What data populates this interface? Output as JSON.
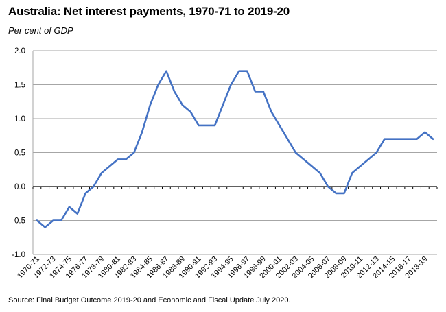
{
  "title": "Australia: Net interest payments, 1970-71 to 2019-20",
  "subtitle": "Per cent of GDP",
  "source": "Source: Final Budget Outcome 2019-20 and Economic and Fiscal Update July 2020.",
  "chart_data": {
    "type": "line",
    "title": "Australia: Net interest payments, 1970-71 to 2019-20",
    "ylabel": "Per cent of GDP",
    "ylim": [
      -1.0,
      2.0
    ],
    "yticks": [
      "2.0",
      "1.5",
      "1.0",
      "0.5",
      "0.0",
      "-0.5",
      "-1.0"
    ],
    "grid": true,
    "legend": "none",
    "line_color": "#4472C4",
    "x": [
      "1970-71",
      "1971-72",
      "1972-73",
      "1973-74",
      "1974-75",
      "1975-76",
      "1976-77",
      "1977-78",
      "1978-79",
      "1979-80",
      "1980-81",
      "1981-82",
      "1982-83",
      "1983-84",
      "1984-85",
      "1985-86",
      "1986-87",
      "1987-88",
      "1988-89",
      "1989-90",
      "1990-91",
      "1991-92",
      "1992-93",
      "1993-94",
      "1994-95",
      "1995-96",
      "1996-97",
      "1997-98",
      "1998-99",
      "1999-00",
      "2000-01",
      "2001-02",
      "2002-03",
      "2003-04",
      "2004-05",
      "2005-06",
      "2006-07",
      "2007-08",
      "2008-09",
      "2009-10",
      "2010-11",
      "2011-12",
      "2012-13",
      "2013-14",
      "2014-15",
      "2015-16",
      "2016-17",
      "2017-18",
      "2018-19",
      "2019-20"
    ],
    "xtick_labels": [
      "1970-71",
      "1972-73",
      "1974-75",
      "1976-77",
      "1978-79",
      "1980-81",
      "1982-83",
      "1984-85",
      "1986-87",
      "1988-89",
      "1990-91",
      "1992-93",
      "1994-95",
      "1996-97",
      "1998-99",
      "2000-01",
      "2002-03",
      "2004-05",
      "2006-07",
      "2008-09",
      "2010-11",
      "2012-13",
      "2014-15",
      "2016-17",
      "2018-19"
    ],
    "values": [
      -0.5,
      -0.6,
      -0.5,
      -0.5,
      -0.3,
      -0.4,
      -0.1,
      0.0,
      0.2,
      0.3,
      0.4,
      0.4,
      0.5,
      0.8,
      1.2,
      1.5,
      1.7,
      1.4,
      1.2,
      1.1,
      0.9,
      0.9,
      0.9,
      1.2,
      1.5,
      1.7,
      1.7,
      1.4,
      1.4,
      1.1,
      0.9,
      0.7,
      0.5,
      0.4,
      0.3,
      0.2,
      0.0,
      -0.1,
      -0.1,
      0.2,
      0.3,
      0.4,
      0.5,
      0.7,
      0.7,
      0.7,
      0.7,
      0.7,
      0.8,
      0.7
    ]
  }
}
